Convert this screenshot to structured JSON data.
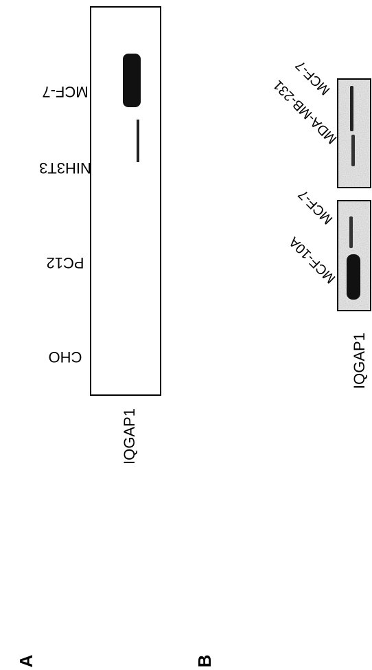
{
  "panel_a": {
    "label": "A",
    "blot_label": "IQGAP1",
    "lanes": [
      "MCF-7",
      "NIH3T3",
      "PC12",
      "CHO"
    ]
  },
  "panel_b": {
    "label": "B",
    "blot_label": "IQGAP1",
    "blots": [
      {
        "lanes": [
          "MCF-7",
          "MDA-MB-231"
        ]
      },
      {
        "lanes": [
          "MCF-7",
          "MCF-10A"
        ]
      }
    ]
  }
}
